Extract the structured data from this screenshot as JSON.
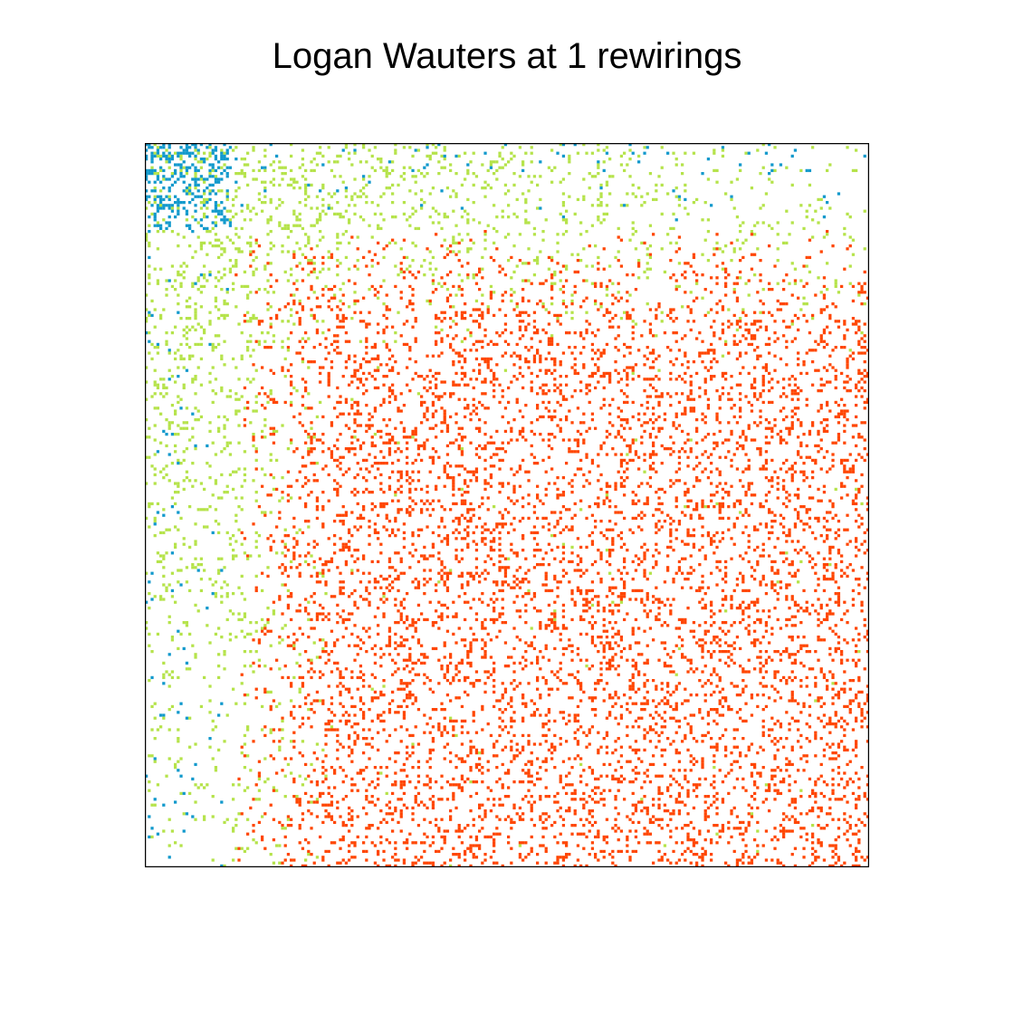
{
  "chart_data": {
    "type": "heatmap",
    "title": "Logan Wauters at 1 rewirings",
    "xlabel": "",
    "ylabel": "",
    "grid": false,
    "legend": "none",
    "matrix_size": 250,
    "colors": {
      "block_core": "#1199cc",
      "block_periphery": "#b5e34a",
      "block_background": "#ff4500",
      "background": "#ffffff",
      "frame": "#000000"
    },
    "blocks": [
      {
        "name": "core",
        "start": 0,
        "end": 30,
        "color": "#1199cc"
      },
      {
        "name": "periphery",
        "start": 30,
        "end": 30,
        "color": "#b5e34a"
      },
      {
        "name": "background",
        "start": 30,
        "end": 250,
        "color": "#ff4500"
      }
    ],
    "densities": {
      "core_core": 0.42,
      "core_periphery": 0.16,
      "periphery_periphery": 0.14,
      "background_background": 0.16,
      "fringe": 0.05
    }
  }
}
